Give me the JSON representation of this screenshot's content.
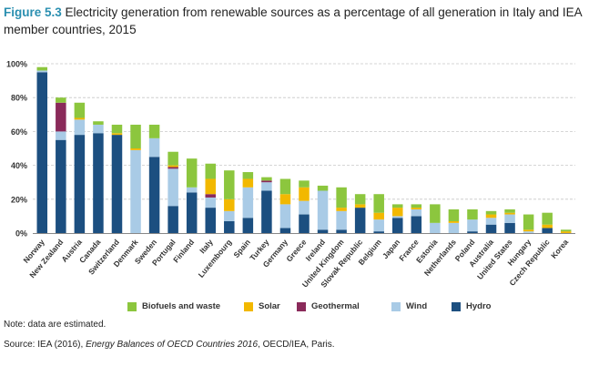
{
  "figure": {
    "label": "Figure 5.3",
    "title": "Electricity generation from renewable sources as a percentage of all generation in Italy and IEA member countries, 2015"
  },
  "note": "Note: data are estimated.",
  "source": {
    "prefix": "Source: IEA (2016), ",
    "italic": "Energy Balances of OECD Countries 2016",
    "suffix": ", OECD/IEA, Paris."
  },
  "chart_data": {
    "type": "bar",
    "stacked": true,
    "y_tick_labels": [
      "0%",
      "20%",
      "40%",
      "60%",
      "80%",
      "100%"
    ],
    "ylim": [
      0,
      100
    ],
    "grid": true,
    "legend_position": "bottom",
    "categories": [
      "Norway",
      "New Zealand",
      "Austria",
      "Canada",
      "Switzerland",
      "Denmark",
      "Sweden",
      "Portugal",
      "Finland",
      "Italy",
      "Luxembourg",
      "Spain",
      "Turkey",
      "Germany",
      "Greece",
      "Ireland",
      "United Kingdom",
      "Slovak Republic",
      "Belgium",
      "Japan",
      "France",
      "Estonia",
      "Netherlands",
      "Poland",
      "Australia",
      "United States",
      "Hungary",
      "Czech Republic",
      "Korea"
    ],
    "highlight_category": "Italy",
    "series": [
      {
        "name": "Hydro",
        "color": "#1c4f80",
        "values": [
          95,
          55,
          58,
          59,
          58,
          0,
          45,
          16,
          24,
          15,
          7,
          9,
          25,
          3,
          11,
          2,
          2,
          15,
          1,
          9,
          10,
          0,
          0,
          1,
          5,
          6,
          0,
          3,
          0
        ]
      },
      {
        "name": "Wind",
        "color": "#a9cbe6",
        "values": [
          1,
          5,
          9,
          5,
          0,
          49,
          11,
          22,
          3,
          6,
          6,
          18,
          5,
          14,
          8,
          23,
          11,
          0,
          7,
          1,
          4,
          6,
          6,
          7,
          4,
          5,
          1,
          0,
          0
        ]
      },
      {
        "name": "Geothermal",
        "color": "#8a2a5a",
        "values": [
          0,
          17,
          0,
          0,
          0,
          0,
          0,
          1,
          0,
          2,
          0,
          0,
          1,
          0,
          0,
          0,
          0,
          0,
          0,
          0,
          0,
          0,
          0,
          0,
          0,
          0,
          0,
          0,
          0
        ]
      },
      {
        "name": "Solar",
        "color": "#f2b800",
        "values": [
          0,
          0,
          1,
          0,
          1,
          1,
          0,
          1,
          0,
          9,
          7,
          5,
          0,
          6,
          8,
          0,
          2,
          2,
          4,
          5,
          1,
          0,
          1,
          0,
          2,
          1,
          1,
          2,
          1
        ]
      },
      {
        "name": "Biofuels and waste",
        "color": "#8cc63e",
        "values": [
          2,
          3,
          9,
          2,
          5,
          14,
          8,
          8,
          17,
          9,
          17,
          4,
          2,
          9,
          4,
          3,
          12,
          6,
          11,
          2,
          2,
          11,
          7,
          6,
          2,
          2,
          9,
          7,
          1
        ]
      }
    ],
    "legend_order": [
      "Biofuels and waste",
      "Solar",
      "Geothermal",
      "Wind",
      "Hydro"
    ]
  }
}
